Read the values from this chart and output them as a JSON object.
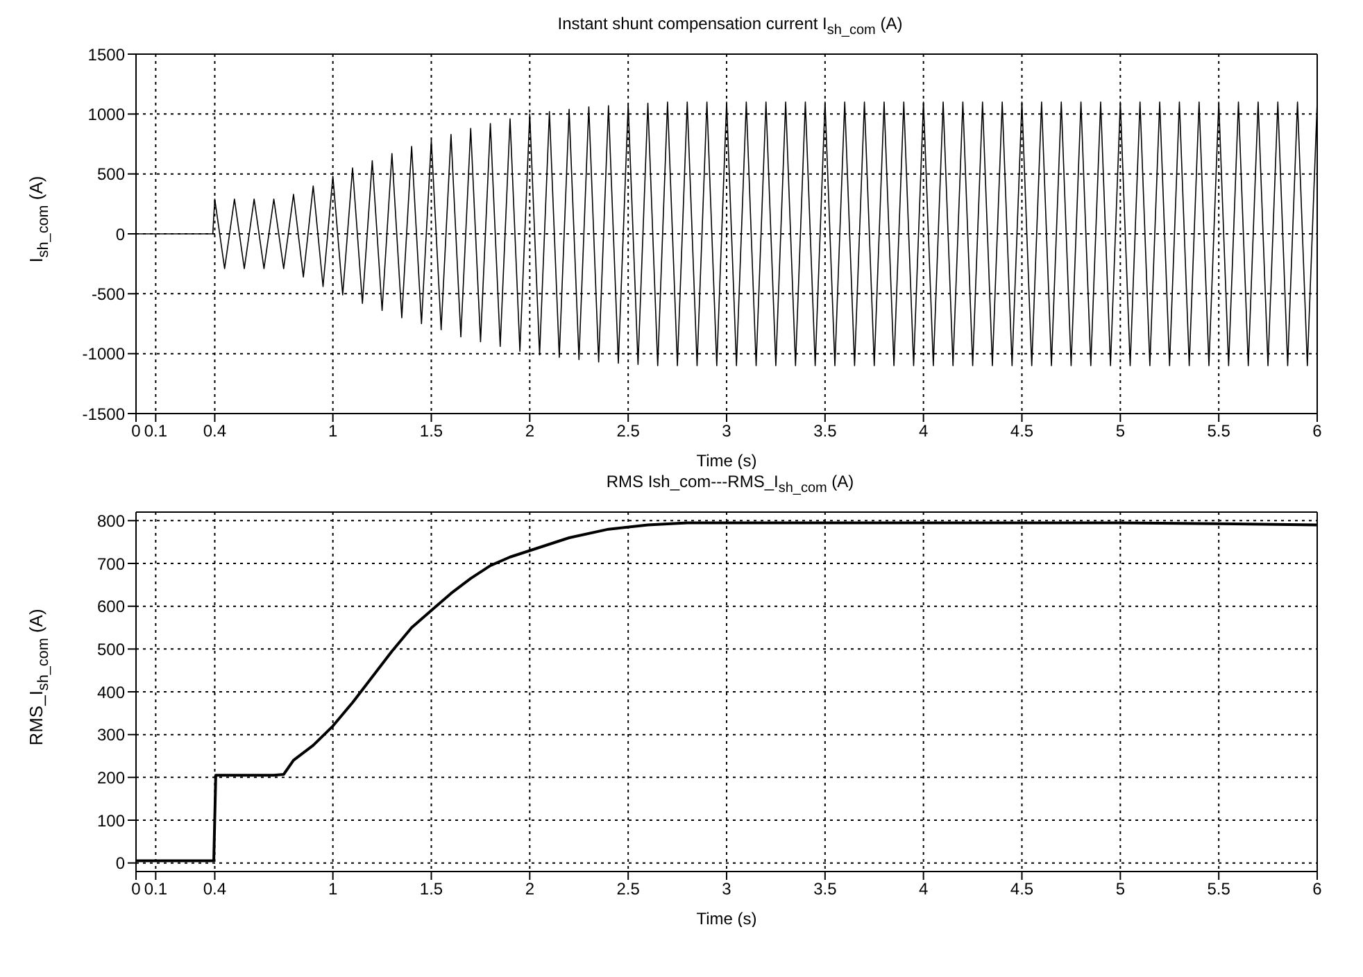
{
  "chart_data": [
    {
      "type": "line",
      "title": "Instant shunt compensation current I$_{sh_com}$ (A)",
      "xlabel": "Time (s)",
      "ylabel": "I$_{sh_com}$ (A)",
      "xlim": [
        0,
        6
      ],
      "xticks": [
        0,
        0.1,
        0.4,
        1,
        1.5,
        2,
        2.5,
        3,
        3.5,
        4,
        4.5,
        5,
        5.5,
        6
      ],
      "ylim": [
        -1500,
        1500
      ],
      "yticks": [
        -1500,
        -1000,
        -500,
        0,
        500,
        1000,
        1500
      ],
      "grid": true,
      "x": [
        0,
        0.39,
        0.4,
        0.45,
        0.5,
        0.55,
        0.6,
        0.65,
        0.7,
        0.75,
        0.8,
        0.85,
        0.9,
        0.95,
        1,
        1.05,
        1.1,
        1.15,
        1.2,
        1.25,
        1.3,
        1.35,
        1.4,
        1.45,
        1.5,
        1.55,
        1.6,
        1.65,
        1.7,
        1.75,
        1.8,
        1.85,
        1.9,
        1.95,
        2,
        2.05,
        2.1,
        2.15,
        2.2,
        2.25,
        2.3,
        2.35,
        2.4,
        2.45,
        2.5,
        2.55,
        2.6,
        2.65,
        2.7,
        2.75,
        2.8,
        2.85,
        2.9,
        2.95,
        3,
        3.05,
        3.1,
        3.15,
        3.2,
        3.25,
        3.3,
        3.35,
        3.4,
        3.45,
        3.5,
        3.55,
        3.6,
        3.65,
        3.7,
        3.75,
        3.8,
        3.85,
        3.9,
        3.95,
        4,
        4.05,
        4.1,
        4.15,
        4.2,
        4.25,
        4.3,
        4.35,
        4.4,
        4.45,
        4.5,
        4.55,
        4.6,
        4.65,
        4.7,
        4.75,
        4.8,
        4.85,
        4.9,
        4.95,
        5,
        5.05,
        5.1,
        5.15,
        5.2,
        5.25,
        5.3,
        5.35,
        5.4,
        5.45,
        5.5,
        5.55,
        5.6,
        5.65,
        5.7,
        5.75,
        5.8,
        5.85,
        5.9,
        5.95,
        6
      ],
      "series": [
        {
          "color": "#000000",
          "values": [
            0,
            0,
            290,
            -290,
            290,
            -290,
            290,
            -290,
            290,
            -290,
            330,
            -360,
            400,
            -440,
            480,
            -510,
            550,
            -580,
            610,
            -640,
            670,
            -700,
            730,
            -750,
            780,
            -800,
            830,
            -860,
            880,
            -900,
            920,
            -940,
            960,
            -980,
            1000,
            -1010,
            1020,
            -1030,
            1040,
            -1050,
            1060,
            -1070,
            1070,
            -1080,
            1080,
            -1090,
            1090,
            -1100,
            1100,
            -1100,
            1100,
            -1100,
            1100,
            -1100,
            1100,
            -1100,
            1100,
            -1100,
            1100,
            -1100,
            1100,
            -1100,
            1100,
            -1100,
            1100,
            -1100,
            1100,
            -1100,
            1100,
            -1100,
            1100,
            -1100,
            1100,
            -1100,
            1100,
            -1100,
            1100,
            -1100,
            1100,
            -1100,
            1100,
            -1100,
            1100,
            -1100,
            1100,
            -1100,
            1100,
            -1100,
            1100,
            -1100,
            1100,
            -1100,
            1100,
            -1100,
            1100,
            -1100,
            1100,
            -1100,
            1100,
            -1100,
            1100,
            -1100,
            1100,
            -1100,
            1100,
            -1100,
            1100,
            -1100,
            1100,
            -1100,
            1100,
            -1100,
            1100,
            -1100,
            1100
          ]
        }
      ]
    },
    {
      "type": "line",
      "title": "RMS Ish_com---RMS_I$_{sh_com}$ (A)",
      "xlabel": "Time (s)",
      "ylabel": "RMS_I$_{sh_com}$ (A)",
      "xlim": [
        0,
        6
      ],
      "xticks": [
        0,
        0.1,
        0.4,
        1,
        1.5,
        2,
        2.5,
        3,
        3.5,
        4,
        4.5,
        5,
        5.5,
        6
      ],
      "ylim": [
        -20,
        820
      ],
      "yticks": [
        0,
        100,
        200,
        300,
        400,
        500,
        600,
        700,
        800
      ],
      "grid": true,
      "x": [
        0,
        0.395,
        0.405,
        0.5,
        0.6,
        0.7,
        0.75,
        0.8,
        0.9,
        1,
        1.1,
        1.2,
        1.3,
        1.4,
        1.5,
        1.6,
        1.7,
        1.8,
        1.9,
        2,
        2.2,
        2.4,
        2.6,
        2.8,
        3,
        3.5,
        4,
        4.5,
        5,
        5.5,
        6
      ],
      "series": [
        {
          "color": "#000000",
          "values": [
            5,
            5,
            205,
            205,
            205,
            205,
            207,
            240,
            275,
            320,
            375,
            435,
            495,
            550,
            590,
            630,
            665,
            695,
            715,
            730,
            760,
            780,
            790,
            795,
            795,
            795,
            795,
            795,
            795,
            793,
            790
          ]
        }
      ]
    }
  ]
}
